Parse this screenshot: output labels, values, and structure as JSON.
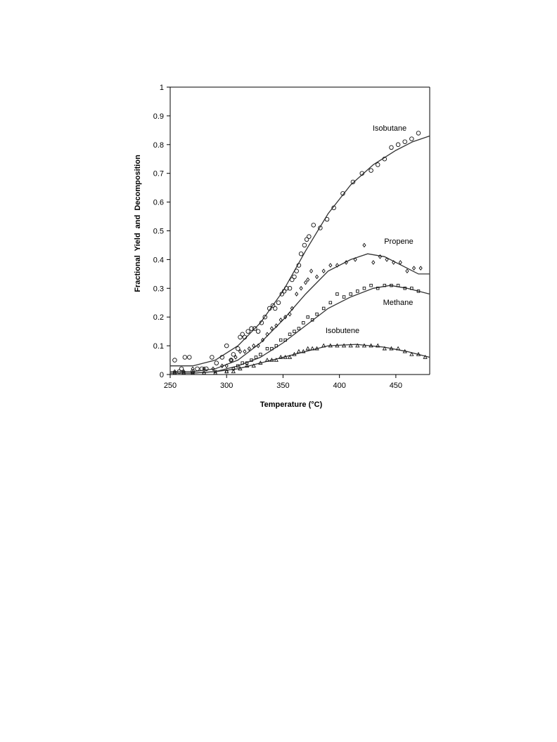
{
  "chart_data": {
    "type": "scatter",
    "title": "",
    "xlabel": "Temperature (°C)",
    "ylabel": "Fractional  Yield  and  Decomposition",
    "xlim": [
      250,
      480
    ],
    "ylim": [
      0,
      1
    ],
    "xticks": [
      "250",
      "300",
      "350",
      "400",
      "450"
    ],
    "yticks": [
      "0",
      "0.1",
      "0.2",
      "0.3",
      "0.4",
      "0.5",
      "0.6",
      "0.7",
      "0.8",
      "0.9",
      "1"
    ],
    "grid": false,
    "legend": "none",
    "series": [
      {
        "name": "Isobutane",
        "marker": "circle",
        "points": [
          [
            254,
            0.05
          ],
          [
            258,
            0.01
          ],
          [
            260,
            0.02
          ],
          [
            263,
            0.06
          ],
          [
            267,
            0.06
          ],
          [
            270,
            0.01
          ],
          [
            274,
            0.02
          ],
          [
            278,
            0.02
          ],
          [
            282,
            0.02
          ],
          [
            287,
            0.06
          ],
          [
            291,
            0.04
          ],
          [
            296,
            0.06
          ],
          [
            300,
            0.1
          ],
          [
            304,
            0.05
          ],
          [
            306,
            0.07
          ],
          [
            310,
            0.09
          ],
          [
            312,
            0.13
          ],
          [
            314,
            0.14
          ],
          [
            316,
            0.13
          ],
          [
            319,
            0.15
          ],
          [
            322,
            0.16
          ],
          [
            325,
            0.16
          ],
          [
            328,
            0.15
          ],
          [
            331,
            0.18
          ],
          [
            334,
            0.2
          ],
          [
            338,
            0.23
          ],
          [
            341,
            0.24
          ],
          [
            343,
            0.23
          ],
          [
            346,
            0.25
          ],
          [
            349,
            0.28
          ],
          [
            351,
            0.29
          ],
          [
            353,
            0.3
          ],
          [
            356,
            0.3
          ],
          [
            358,
            0.33
          ],
          [
            360,
            0.34
          ],
          [
            362,
            0.36
          ],
          [
            364,
            0.38
          ],
          [
            366,
            0.42
          ],
          [
            369,
            0.45
          ],
          [
            371,
            0.47
          ],
          [
            373,
            0.48
          ],
          [
            377,
            0.52
          ],
          [
            383,
            0.51
          ],
          [
            389,
            0.54
          ],
          [
            395,
            0.58
          ],
          [
            403,
            0.63
          ],
          [
            412,
            0.67
          ],
          [
            420,
            0.7
          ],
          [
            428,
            0.71
          ],
          [
            434,
            0.73
          ],
          [
            440,
            0.75
          ],
          [
            446,
            0.79
          ],
          [
            452,
            0.8
          ],
          [
            458,
            0.81
          ],
          [
            464,
            0.82
          ],
          [
            470,
            0.84
          ]
        ],
        "fit": [
          [
            250,
            0.03
          ],
          [
            270,
            0.03
          ],
          [
            290,
            0.05
          ],
          [
            310,
            0.1
          ],
          [
            330,
            0.18
          ],
          [
            350,
            0.29
          ],
          [
            370,
            0.43
          ],
          [
            390,
            0.56
          ],
          [
            410,
            0.66
          ],
          [
            430,
            0.73
          ],
          [
            450,
            0.78
          ],
          [
            465,
            0.81
          ],
          [
            480,
            0.83
          ]
        ]
      },
      {
        "name": "Propene",
        "marker": "diamond",
        "points": [
          [
            254,
            0.01
          ],
          [
            262,
            0.01
          ],
          [
            270,
            0.02
          ],
          [
            280,
            0.02
          ],
          [
            288,
            0.02
          ],
          [
            296,
            0.03
          ],
          [
            300,
            0.03
          ],
          [
            304,
            0.05
          ],
          [
            308,
            0.06
          ],
          [
            312,
            0.08
          ],
          [
            316,
            0.08
          ],
          [
            320,
            0.09
          ],
          [
            324,
            0.1
          ],
          [
            328,
            0.1
          ],
          [
            332,
            0.12
          ],
          [
            336,
            0.14
          ],
          [
            340,
            0.16
          ],
          [
            344,
            0.17
          ],
          [
            348,
            0.19
          ],
          [
            352,
            0.2
          ],
          [
            356,
            0.21
          ],
          [
            358,
            0.23
          ],
          [
            362,
            0.28
          ],
          [
            366,
            0.3
          ],
          [
            370,
            0.32
          ],
          [
            372,
            0.33
          ],
          [
            375,
            0.36
          ],
          [
            380,
            0.34
          ],
          [
            386,
            0.36
          ],
          [
            392,
            0.38
          ],
          [
            398,
            0.38
          ],
          [
            406,
            0.39
          ],
          [
            414,
            0.4
          ],
          [
            422,
            0.45
          ],
          [
            430,
            0.39
          ],
          [
            436,
            0.41
          ],
          [
            442,
            0.4
          ],
          [
            448,
            0.39
          ],
          [
            454,
            0.39
          ],
          [
            460,
            0.36
          ],
          [
            466,
            0.37
          ],
          [
            472,
            0.37
          ]
        ],
        "fit": [
          [
            250,
            0.01
          ],
          [
            270,
            0.01
          ],
          [
            290,
            0.02
          ],
          [
            310,
            0.05
          ],
          [
            330,
            0.11
          ],
          [
            350,
            0.19
          ],
          [
            370,
            0.28
          ],
          [
            390,
            0.36
          ],
          [
            410,
            0.4
          ],
          [
            425,
            0.42
          ],
          [
            440,
            0.41
          ],
          [
            455,
            0.38
          ],
          [
            470,
            0.35
          ],
          [
            480,
            0.35
          ]
        ]
      },
      {
        "name": "Methane",
        "marker": "square",
        "points": [
          [
            254,
            0.005
          ],
          [
            262,
            0.005
          ],
          [
            270,
            0.005
          ],
          [
            280,
            0.005
          ],
          [
            290,
            0.01
          ],
          [
            300,
            0.01
          ],
          [
            306,
            0.02
          ],
          [
            310,
            0.03
          ],
          [
            314,
            0.04
          ],
          [
            318,
            0.04
          ],
          [
            322,
            0.05
          ],
          [
            326,
            0.06
          ],
          [
            330,
            0.07
          ],
          [
            336,
            0.09
          ],
          [
            340,
            0.09
          ],
          [
            344,
            0.1
          ],
          [
            348,
            0.12
          ],
          [
            352,
            0.12
          ],
          [
            356,
            0.14
          ],
          [
            360,
            0.15
          ],
          [
            364,
            0.16
          ],
          [
            368,
            0.18
          ],
          [
            372,
            0.2
          ],
          [
            376,
            0.19
          ],
          [
            380,
            0.21
          ],
          [
            386,
            0.23
          ],
          [
            392,
            0.25
          ],
          [
            398,
            0.28
          ],
          [
            404,
            0.27
          ],
          [
            410,
            0.28
          ],
          [
            416,
            0.29
          ],
          [
            422,
            0.3
          ],
          [
            428,
            0.31
          ],
          [
            434,
            0.3
          ],
          [
            440,
            0.31
          ],
          [
            446,
            0.31
          ],
          [
            452,
            0.31
          ],
          [
            458,
            0.3
          ],
          [
            464,
            0.3
          ],
          [
            470,
            0.29
          ]
        ],
        "fit": [
          [
            250,
            0.005
          ],
          [
            270,
            0.005
          ],
          [
            290,
            0.01
          ],
          [
            310,
            0.03
          ],
          [
            330,
            0.06
          ],
          [
            350,
            0.11
          ],
          [
            370,
            0.17
          ],
          [
            390,
            0.23
          ],
          [
            410,
            0.27
          ],
          [
            430,
            0.3
          ],
          [
            445,
            0.31
          ],
          [
            460,
            0.3
          ],
          [
            480,
            0.28
          ]
        ]
      },
      {
        "name": "Isobutene",
        "marker": "triangle",
        "points": [
          [
            254,
            0.005
          ],
          [
            262,
            0.005
          ],
          [
            270,
            0.005
          ],
          [
            280,
            0.005
          ],
          [
            290,
            0.005
          ],
          [
            300,
            0.01
          ],
          [
            306,
            0.01
          ],
          [
            312,
            0.02
          ],
          [
            318,
            0.03
          ],
          [
            324,
            0.03
          ],
          [
            330,
            0.04
          ],
          [
            336,
            0.05
          ],
          [
            340,
            0.05
          ],
          [
            344,
            0.05
          ],
          [
            348,
            0.06
          ],
          [
            352,
            0.06
          ],
          [
            356,
            0.06
          ],
          [
            360,
            0.07
          ],
          [
            364,
            0.08
          ],
          [
            368,
            0.08
          ],
          [
            372,
            0.09
          ],
          [
            376,
            0.09
          ],
          [
            380,
            0.09
          ],
          [
            386,
            0.1
          ],
          [
            392,
            0.1
          ],
          [
            398,
            0.1
          ],
          [
            404,
            0.1
          ],
          [
            410,
            0.1
          ],
          [
            416,
            0.1
          ],
          [
            422,
            0.1
          ],
          [
            428,
            0.1
          ],
          [
            434,
            0.1
          ],
          [
            440,
            0.09
          ],
          [
            446,
            0.09
          ],
          [
            452,
            0.09
          ],
          [
            458,
            0.08
          ],
          [
            464,
            0.07
          ],
          [
            470,
            0.07
          ],
          [
            476,
            0.06
          ]
        ],
        "fit": [
          [
            250,
            0.005
          ],
          [
            270,
            0.005
          ],
          [
            290,
            0.01
          ],
          [
            310,
            0.02
          ],
          [
            330,
            0.04
          ],
          [
            350,
            0.06
          ],
          [
            370,
            0.08
          ],
          [
            390,
            0.1
          ],
          [
            415,
            0.105
          ],
          [
            440,
            0.095
          ],
          [
            460,
            0.08
          ],
          [
            480,
            0.06
          ]
        ]
      }
    ]
  }
}
